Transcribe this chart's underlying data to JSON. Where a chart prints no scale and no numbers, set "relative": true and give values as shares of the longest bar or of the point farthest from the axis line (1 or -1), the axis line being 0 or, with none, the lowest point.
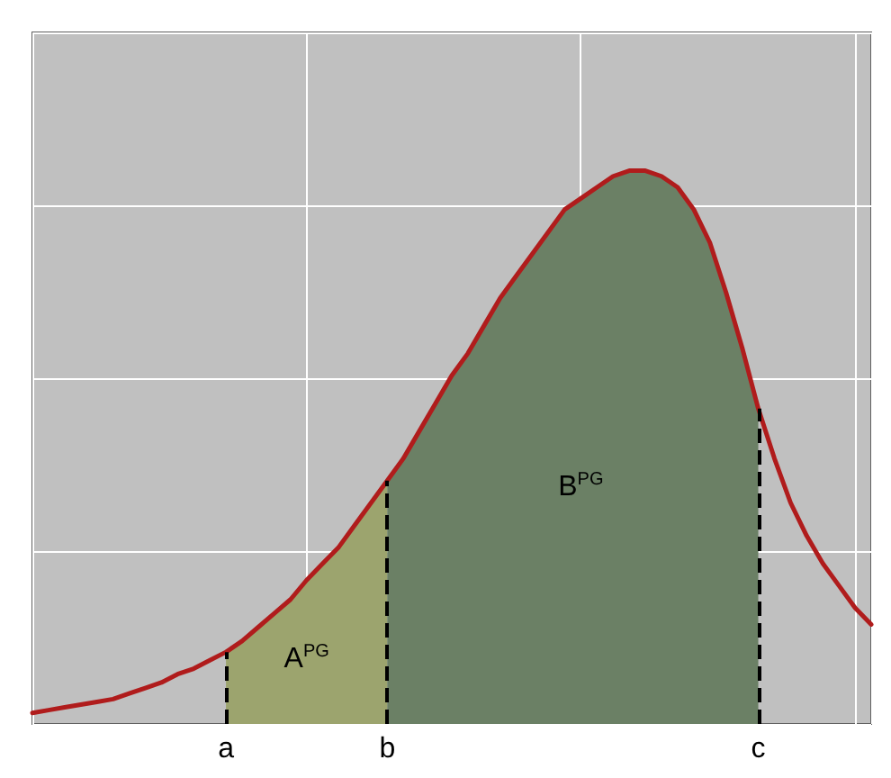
{
  "chart_data": {
    "type": "line",
    "relative": true,
    "grid": true,
    "categories": [
      null,
      null,
      null,
      null,
      null,
      null,
      null,
      null,
      null,
      null,
      null,
      null,
      "a",
      null,
      null,
      null,
      null,
      null,
      null,
      null,
      null,
      null,
      "b",
      null,
      null,
      null,
      null,
      null,
      null,
      null,
      null,
      null,
      null,
      null,
      null,
      null,
      null,
      null,
      null,
      null,
      null,
      null,
      null,
      null,
      null,
      "c",
      null,
      null,
      null,
      null,
      null,
      null,
      null
    ],
    "series": [
      {
        "name": "A$^{PG}$",
        "type": "area",
        "color": "#9ca46e",
        "values": [
          null,
          null,
          null,
          null,
          null,
          null,
          null,
          null,
          null,
          null,
          null,
          null,
          0.13,
          0.15,
          0.175,
          0.2,
          0.225,
          0.26,
          0.29,
          0.32,
          0.36,
          0.4,
          0.44,
          null,
          null,
          null,
          null,
          null,
          null,
          null,
          null,
          null,
          null,
          null,
          null,
          null,
          null,
          null,
          null,
          null,
          null,
          null,
          null,
          null,
          null,
          null,
          null,
          null,
          null,
          null,
          null,
          null,
          null
        ]
      },
      {
        "name": "B$^{PG}$",
        "type": "area",
        "color": "#6b8065",
        "values": [
          null,
          null,
          null,
          null,
          null,
          null,
          null,
          null,
          null,
          null,
          null,
          null,
          null,
          null,
          null,
          null,
          null,
          null,
          null,
          null,
          null,
          null,
          0.44,
          0.48,
          0.53,
          0.58,
          0.63,
          0.67,
          0.72,
          0.77,
          0.81,
          0.85,
          0.89,
          0.93,
          0.95,
          0.97,
          0.99,
          1.0,
          1.0,
          0.99,
          0.97,
          0.93,
          0.87,
          0.78,
          0.68,
          0.57,
          null,
          null,
          null,
          null,
          null,
          null,
          null
        ]
      },
      {
        "color": "#b01c1c",
        "values": [
          0.02,
          0.025,
          0.03,
          0.035,
          0.04,
          0.045,
          0.055,
          0.065,
          0.075,
          0.09,
          0.1,
          0.115,
          0.13,
          0.15,
          0.175,
          0.2,
          0.225,
          0.26,
          0.29,
          0.32,
          0.36,
          0.4,
          0.44,
          0.48,
          0.53,
          0.58,
          0.63,
          0.67,
          0.72,
          0.77,
          0.81,
          0.85,
          0.89,
          0.93,
          0.95,
          0.97,
          0.99,
          1.0,
          1.0,
          0.99,
          0.97,
          0.93,
          0.87,
          0.78,
          0.68,
          0.57,
          0.48,
          0.4,
          0.34,
          0.29,
          0.25,
          0.21,
          0.18
        ]
      }
    ],
    "ref_lines": [
      {
        "axis": "x",
        "value": "a",
        "color": "#000000",
        "line_style": "dashed"
      },
      {
        "axis": "x",
        "value": "b",
        "color": "#000000",
        "line_style": "dashed"
      },
      {
        "axis": "x",
        "value": "c",
        "color": "#000000",
        "line_style": "dashed"
      }
    ]
  }
}
